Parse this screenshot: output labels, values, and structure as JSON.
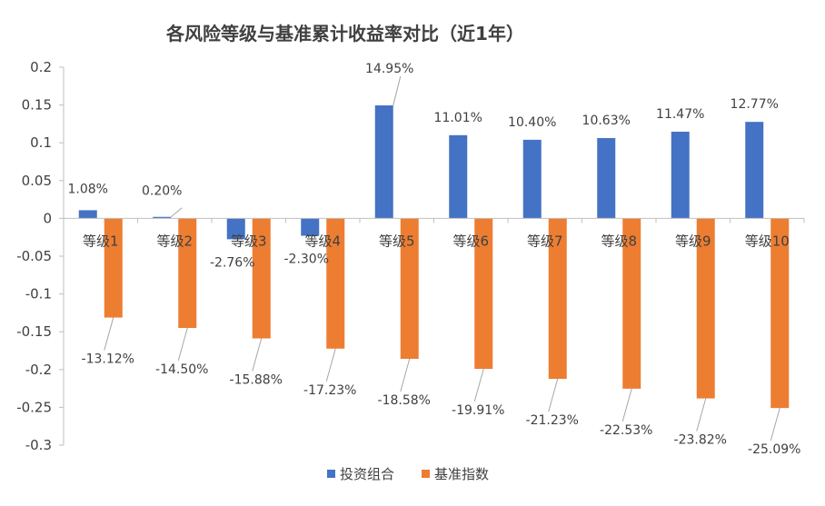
{
  "chart_data": {
    "type": "bar",
    "title": "各风险等级与基准累计收益率对比（近1年）",
    "categories": [
      "等级1",
      "等级2",
      "等级3",
      "等级4",
      "等级5",
      "等级6",
      "等级7",
      "等级8",
      "等级9",
      "等级10"
    ],
    "series": [
      {
        "name": "投资组合",
        "color": "#4472C4",
        "values": [
          0.0108,
          0.002,
          -0.0276,
          -0.023,
          0.1495,
          0.1101,
          0.104,
          0.1063,
          0.1147,
          0.1277
        ],
        "labels": [
          "1.08%",
          "0.20%",
          "-2.76%",
          "-2.30%",
          "14.95%",
          "11.01%",
          "10.40%",
          "10.63%",
          "11.47%",
          "12.77%"
        ]
      },
      {
        "name": "基准指数",
        "color": "#ED7D31",
        "values": [
          -0.1312,
          -0.145,
          -0.1588,
          -0.1723,
          -0.1858,
          -0.1991,
          -0.2123,
          -0.2253,
          -0.2382,
          -0.2509
        ],
        "labels": [
          "-13.12%",
          "-14.50%",
          "-15.88%",
          "-17.23%",
          "-18.58%",
          "-19.91%",
          "-21.23%",
          "-22.53%",
          "-23.82%",
          "-25.09%"
        ]
      }
    ],
    "yticks": [
      "0.2",
      "0.15",
      "0.1",
      "0.05",
      "0",
      "-0.05",
      "-0.1",
      "-0.15",
      "-0.2",
      "-0.25",
      "-0.3"
    ],
    "ylim": [
      -0.3,
      0.2
    ],
    "grid": false,
    "legend": "bottom"
  }
}
